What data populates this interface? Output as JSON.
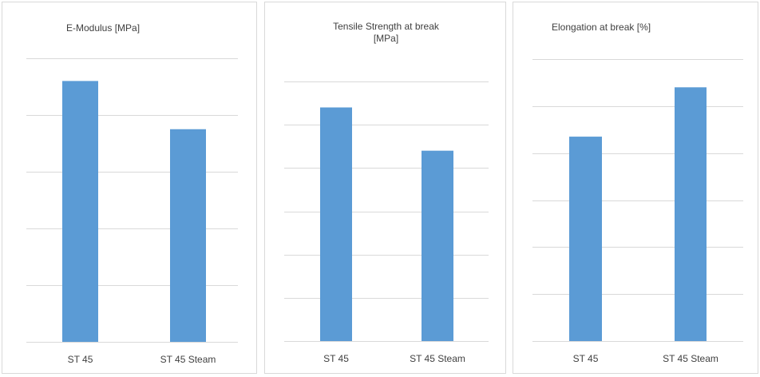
{
  "colors": {
    "bar": "#5b9bd5",
    "grid": "#d9d9d9",
    "text": "#404040"
  },
  "chart_data": [
    {
      "type": "bar",
      "title": "E-Modulus [MPa]",
      "categories": [
        "ST 45",
        "ST 45 Steam"
      ],
      "values": [
        4.6,
        3.75
      ],
      "ylim": [
        0,
        5
      ],
      "gridlines": 5,
      "grid": true,
      "legend": "none"
    },
    {
      "type": "bar",
      "title_lines": [
        "Tensile Strength at break",
        "[MPa]"
      ],
      "categories": [
        "ST 45",
        "ST 45 Steam"
      ],
      "values": [
        5.4,
        4.4
      ],
      "ylim": [
        0,
        6
      ],
      "gridlines": 6,
      "grid": true,
      "legend": "none"
    },
    {
      "type": "bar",
      "title": "Elongation at break [%]",
      "categories": [
        "ST 45",
        "ST 45 Steam"
      ],
      "values": [
        4.35,
        5.4
      ],
      "ylim": [
        0,
        6
      ],
      "gridlines": 6,
      "grid": true,
      "legend": "none"
    }
  ]
}
